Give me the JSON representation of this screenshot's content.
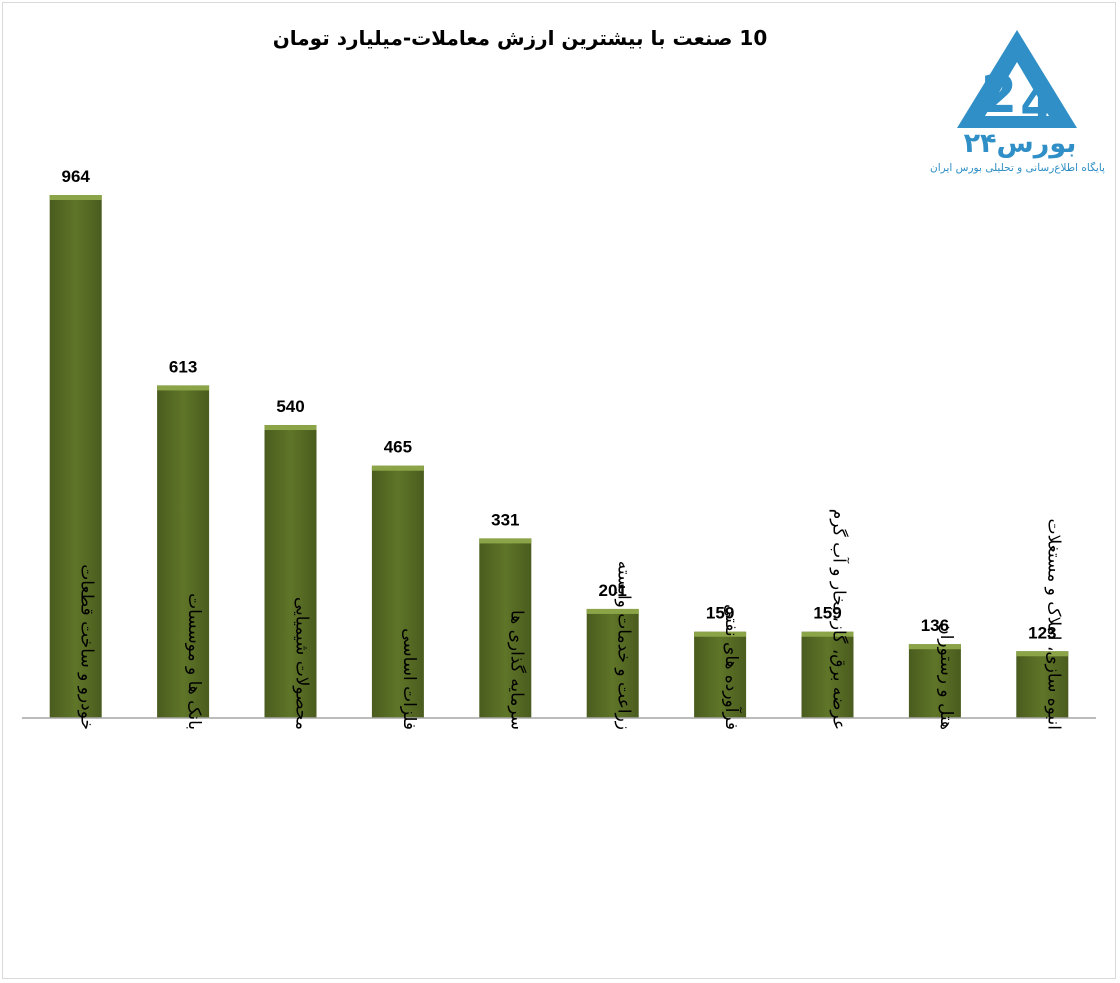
{
  "chart_data": {
    "type": "bar",
    "title": "10 صنعت با بیشترین ارزش معاملات-میلیارد تومان",
    "xlabel": "",
    "ylabel": "",
    "categories": [
      "خودرو و ساخت قطعات",
      "بانک ها و موسسات",
      "محصولات شیمیایی",
      "فلزات اساسی",
      "سرمایه گذاری ها",
      "زراعت و خدمات وابسته",
      "فرآورده های نفتی",
      "عرضه برق، گاز، بخار و آب گرم",
      "هتل و رستوران",
      "انبوه سازی، املاک و مستغلات"
    ],
    "values": [
      964,
      613,
      540,
      465,
      331,
      201,
      159,
      159,
      136,
      123
    ],
    "ylim": [
      0,
      1000
    ],
    "grid": false,
    "legend": "none",
    "bar_color": "#5b7027",
    "bar_highlight": "#8aa447"
  },
  "logo": {
    "name": "بورس۲۴",
    "tagline": "پایگاه اطلاع‌رسانی و تحلیلی بورس ایران",
    "color": "#2f8fc6"
  }
}
